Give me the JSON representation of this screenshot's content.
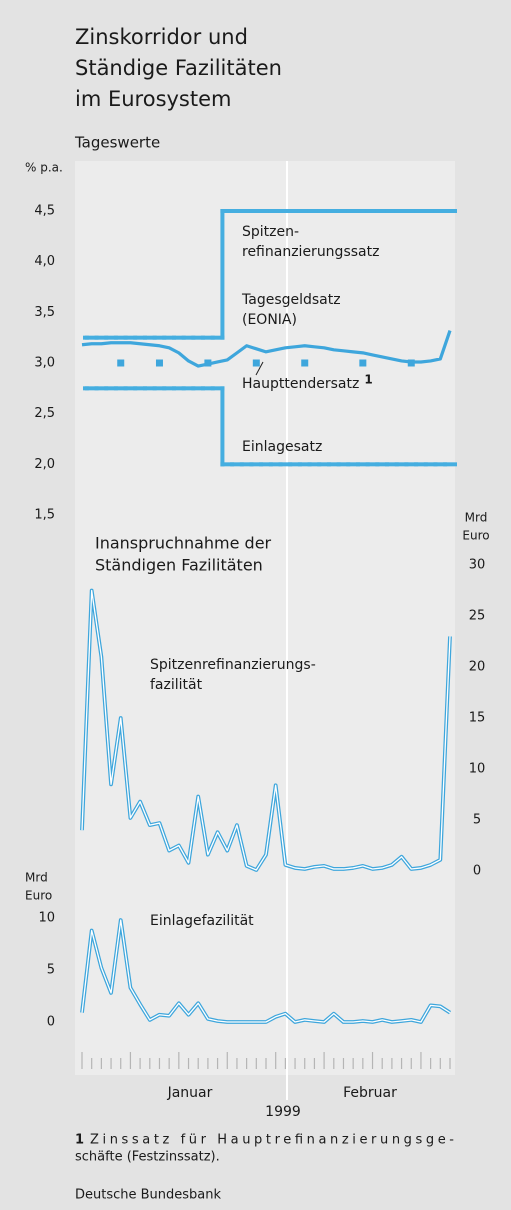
{
  "title": [
    "Zinskorridor und",
    "Ständige Fazilitäten",
    "im Eurosystem"
  ],
  "subtitle": "Tageswerte",
  "chart_data": [
    {
      "type": "line",
      "y_label": [
        "% p.a."
      ],
      "categories": [
        null,
        null,
        null,
        null,
        null,
        null,
        null,
        null,
        null,
        null,
        null,
        null,
        null,
        null,
        null,
        null,
        null,
        null,
        null,
        null,
        null,
        null,
        null,
        null,
        null,
        null,
        null,
        null,
        null,
        null,
        null,
        null,
        null,
        null,
        null,
        null,
        null,
        null,
        null
      ],
      "ylim": [
        1.5,
        4.5
      ],
      "yticks": [
        {
          "value": 4.5,
          "label": "4,5"
        },
        {
          "value": 4,
          "label": "4,0"
        },
        {
          "value": 3.5,
          "label": "3,5"
        },
        {
          "value": 3,
          "label": "3,0"
        },
        {
          "value": 2.5,
          "label": "2,5"
        },
        {
          "value": 2,
          "label": "2,0"
        },
        {
          "value": 1.5,
          "label": "1,5"
        }
      ],
      "axis_side": "left",
      "series": [
        {
          "label": [
            "Spitzen-",
            "refinanzierungssatz"
          ],
          "style": "step",
          "color": "#45aee0",
          "values": [
            3.25,
            3.25,
            3.25,
            3.25,
            3.25,
            3.25,
            3.25,
            3.25,
            3.25,
            3.25,
            3.25,
            3.25,
            3.25,
            3.25,
            3.25,
            4.5,
            4.5,
            4.5,
            4.5,
            4.5,
            4.5,
            4.5,
            4.5,
            4.5,
            4.5,
            4.5,
            4.5,
            4.5,
            4.5,
            4.5,
            4.5,
            4.5,
            4.5,
            4.5,
            4.5,
            4.5,
            4.5,
            4.5,
            4.5
          ]
        },
        {
          "label": [
            "Tagesgeldsatz",
            "(EONIA)"
          ],
          "style": "line",
          "color": "#3ea6dc",
          "values": [
            3.18,
            3.19,
            3.19,
            3.2,
            3.2,
            3.2,
            3.19,
            3.18,
            3.17,
            3.15,
            3.1,
            3.02,
            2.97,
            2.99,
            3.01,
            3.03,
            3.1,
            3.17,
            3.14,
            3.11,
            3.13,
            3.15,
            3.16,
            3.17,
            3.16,
            3.15,
            3.13,
            3.12,
            3.11,
            3.1,
            3.08,
            3.06,
            3.04,
            3.02,
            3.01,
            3.01,
            3.02,
            3.04,
            3.32
          ]
        },
        {
          "label": [
            "Haupttendersatz"
          ],
          "footnote_mark": "1",
          "style": "marker",
          "color": "#3ea6dc",
          "values": [
            null,
            null,
            null,
            null,
            3,
            null,
            null,
            null,
            3,
            null,
            null,
            null,
            null,
            3,
            null,
            null,
            null,
            null,
            3,
            null,
            null,
            null,
            null,
            3,
            null,
            null,
            null,
            null,
            null,
            3,
            null,
            null,
            null,
            null,
            3,
            null,
            null,
            null,
            null
          ]
        },
        {
          "label": [
            "Einlagesatz"
          ],
          "style": "step",
          "color": "#45aee0",
          "values": [
            2.75,
            2.75,
            2.75,
            2.75,
            2.75,
            2.75,
            2.75,
            2.75,
            2.75,
            2.75,
            2.75,
            2.75,
            2.75,
            2.75,
            2.75,
            2,
            2,
            2,
            2,
            2,
            2,
            2,
            2,
            2,
            2,
            2,
            2,
            2,
            2,
            2,
            2,
            2,
            2,
            2,
            2,
            2,
            2,
            2,
            2
          ]
        }
      ]
    },
    {
      "type": "line",
      "title": [
        "Inanspruchnahme der",
        "Ständigen Fazilitäten"
      ],
      "y_label": [
        "Mrd",
        "Euro"
      ],
      "categories": [
        null,
        null,
        null,
        null,
        null,
        null,
        null,
        null,
        null,
        null,
        null,
        null,
        null,
        null,
        null,
        null,
        null,
        null,
        null,
        null,
        null,
        null,
        null,
        null,
        null,
        null,
        null,
        null,
        null,
        null,
        null,
        null,
        null,
        null,
        null,
        null,
        null,
        null,
        null
      ],
      "ylim": [
        0,
        30
      ],
      "yticks": [
        30,
        25,
        20,
        15,
        10,
        5,
        0
      ],
      "axis_side": "right",
      "series": [
        {
          "label": [
            "Spitzenrefinanzierungs-",
            "fazilität"
          ],
          "style": "double",
          "color": "#3ea6dc",
          "values": [
            4,
            27.5,
            21,
            8.5,
            15,
            5.2,
            6.8,
            4.5,
            4.7,
            2,
            2.5,
            0.8,
            7.3,
            1.6,
            3.8,
            2,
            4.5,
            0.5,
            0.1,
            1.6,
            8.4,
            0.6,
            0.3,
            0.2,
            0.4,
            0.5,
            0.2,
            0.2,
            0.3,
            0.5,
            0.2,
            0.3,
            0.6,
            1.4,
            0.2,
            0.3,
            0.6,
            1.1,
            23
          ]
        }
      ]
    },
    {
      "type": "line",
      "y_label": [
        "Mrd",
        "Euro"
      ],
      "categories": [
        null,
        null,
        null,
        null,
        null,
        null,
        null,
        null,
        null,
        null,
        null,
        null,
        null,
        null,
        null,
        null,
        null,
        null,
        null,
        null,
        null,
        null,
        null,
        null,
        null,
        null,
        null,
        null,
        null,
        null,
        null,
        null,
        null,
        null,
        null,
        null,
        null,
        null,
        null
      ],
      "ylim": [
        0,
        10
      ],
      "yticks": [
        10,
        5,
        0
      ],
      "axis_side": "left",
      "month_labels": [
        "Januar",
        "Februar"
      ],
      "year_label": "1999",
      "series": [
        {
          "label": [
            "Einlagefazilität"
          ],
          "style": "double",
          "color": "#3ea6dc",
          "values": [
            0.9,
            8.8,
            5.2,
            2.8,
            9.8,
            3.3,
            1.7,
            0.2,
            0.7,
            0.6,
            1.8,
            0.7,
            1.8,
            0.3,
            0.1,
            0,
            0,
            0,
            0,
            0,
            0.5,
            0.8,
            0,
            0.2,
            0.1,
            0,
            0.8,
            0,
            0,
            0.1,
            0,
            0.2,
            0,
            0.1,
            0.2,
            0,
            1.6,
            1.5,
            0.9
          ]
        }
      ]
    }
  ],
  "footnote": {
    "mark": "1",
    "text": [
      "Zinssatz für Hauptrefinanzierungsge-",
      "schäfte (Festzinssatz)."
    ]
  },
  "source": "Deutsche Bundesbank"
}
